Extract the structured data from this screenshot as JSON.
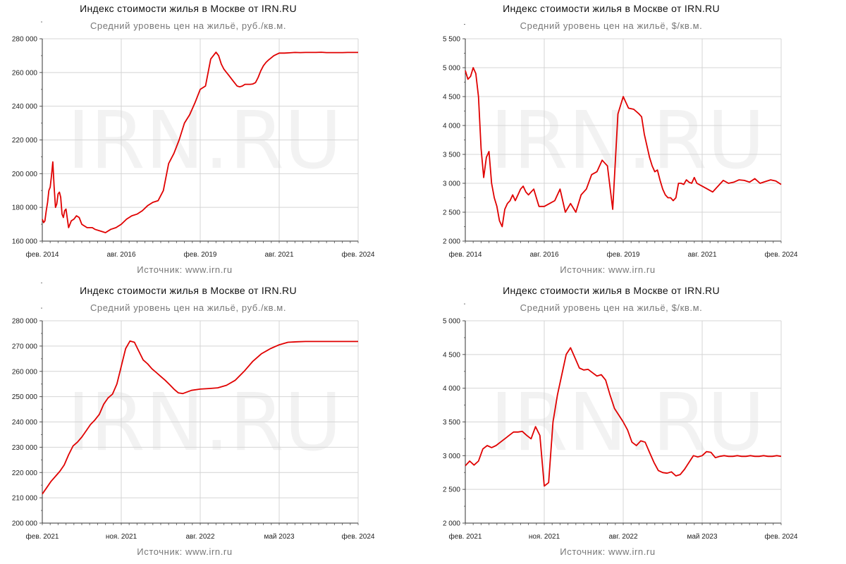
{
  "chart_data": [
    {
      "type": "line",
      "title": "Индекс стоимости жилья в Москве от IRN.RU",
      "subtitle": "Средний уровень цен на жильё, руб./кв.м.",
      "source": "Источник: www.irn.ru",
      "watermark": "IRN.RU",
      "ylim": [
        160000,
        280000
      ],
      "yticks": [
        "160 000",
        "180 000",
        "200 000",
        "220 000",
        "240 000",
        "260 000",
        "280 000"
      ],
      "xticks": [
        "фев. 2014",
        "авг. 2016",
        "фев. 2019",
        "авг. 2021",
        "фев. 2024"
      ],
      "line_color": "#e00000",
      "series": [
        {
          "name": "руб./кв.м.",
          "x": [
            0,
            0.5,
            1,
            1.5,
            2,
            2.5,
            3,
            3.5,
            4,
            4.5,
            5,
            5.5,
            6,
            6.5,
            7,
            7.5,
            8,
            8.5,
            9,
            10,
            11,
            12,
            13,
            14,
            15,
            16,
            17,
            18,
            19,
            20,
            22,
            24,
            26,
            28,
            30,
            32,
            34,
            36,
            38,
            40,
            42,
            44,
            46,
            48,
            50,
            52,
            54,
            56,
            58,
            60,
            62,
            64,
            66,
            67,
            68,
            69,
            70,
            71,
            72,
            73,
            74,
            75,
            76,
            77,
            78,
            79,
            80,
            81,
            82,
            83,
            84,
            85,
            86,
            88,
            90,
            92,
            94,
            96,
            98,
            100,
            102,
            104,
            106,
            108,
            110,
            112,
            114,
            116,
            118,
            120
          ],
          "values": [
            173000,
            171000,
            172000,
            178000,
            183000,
            190000,
            192000,
            199000,
            207000,
            192000,
            180000,
            182000,
            188000,
            189000,
            186000,
            176000,
            174000,
            178000,
            179000,
            168000,
            172000,
            173000,
            175000,
            174000,
            170000,
            169000,
            168000,
            168000,
            168000,
            167000,
            166000,
            165000,
            167000,
            168000,
            170000,
            173000,
            175000,
            176000,
            178000,
            181000,
            183000,
            184000,
            190000,
            206000,
            212000,
            220000,
            230000,
            235000,
            242000,
            250000,
            252000,
            268000,
            272000,
            270000,
            265000,
            262000,
            260000,
            258000,
            256000,
            254000,
            252000,
            251500,
            252000,
            253000,
            253000,
            253000,
            253200,
            254000,
            257000,
            261000,
            264000,
            266000,
            267500,
            270000,
            271500,
            271500,
            271700,
            271900,
            271800,
            271900,
            271900,
            271900,
            272000,
            271800,
            271800,
            271800,
            271800,
            271900,
            271900,
            271900
          ]
        }
      ]
    },
    {
      "type": "line",
      "title": "Индекс стоимости жилья в Москве от IRN.RU",
      "subtitle": "Средний уровень цен на жильё, $/кв.м.",
      "source": "Источник: www.irn.ru",
      "watermark": "IRN.RU",
      "ylim": [
        2000,
        5500
      ],
      "yticks": [
        "2 000",
        "2 500",
        "3 000",
        "3 500",
        "4 000",
        "4 500",
        "5 000",
        "5 500"
      ],
      "xticks": [
        "фев. 2014",
        "авг. 2016",
        "фев. 2019",
        "авг. 2021",
        "фев. 2024"
      ],
      "line_color": "#e00000",
      "series": [
        {
          "name": "$/кв.м.",
          "x": [
            0,
            1,
            2,
            3,
            4,
            5,
            6,
            7,
            8,
            9,
            10,
            11,
            12,
            13,
            14,
            15,
            16,
            17,
            18,
            19,
            20,
            21,
            22,
            23,
            24,
            26,
            28,
            30,
            32,
            34,
            36,
            38,
            40,
            42,
            44,
            46,
            48,
            50,
            52,
            54,
            56,
            58,
            60,
            62,
            64,
            66,
            67,
            68,
            69,
            70,
            71,
            72,
            73,
            74,
            75,
            76,
            77,
            78,
            79,
            80,
            81,
            82,
            83,
            84,
            85,
            86,
            87,
            88,
            90,
            92,
            94,
            96,
            98,
            100,
            102,
            104,
            106,
            108,
            110,
            112,
            114,
            116,
            118,
            120
          ],
          "values": [
            4950,
            4800,
            4850,
            5000,
            4900,
            4500,
            3600,
            3100,
            3450,
            3550,
            3000,
            2750,
            2600,
            2350,
            2250,
            2550,
            2650,
            2700,
            2800,
            2700,
            2800,
            2900,
            2950,
            2850,
            2800,
            2900,
            2600,
            2600,
            2650,
            2700,
            2900,
            2500,
            2650,
            2500,
            2800,
            2900,
            3150,
            3200,
            3400,
            3300,
            2550,
            4200,
            4500,
            4300,
            4280,
            4200,
            4150,
            3850,
            3650,
            3450,
            3300,
            3200,
            3230,
            3050,
            2900,
            2800,
            2750,
            2750,
            2700,
            2750,
            3000,
            3000,
            2980,
            3060,
            3020,
            3000,
            3100,
            3000,
            2950,
            2900,
            2850,
            2950,
            3050,
            3000,
            3020,
            3060,
            3050,
            3020,
            3080,
            3000,
            3030,
            3060,
            3040,
            2980
          ]
        }
      ]
    },
    {
      "type": "line",
      "title": "Индекс стоимости жилья в Москве от IRN.RU",
      "subtitle": "Средний уровень цен на жильё, руб./кв.м.",
      "source": "Источник: www.irn.ru",
      "watermark": "IRN.RU",
      "ylim": [
        200000,
        280000
      ],
      "yticks": [
        "200 000",
        "210 000",
        "220 000",
        "230 000",
        "240 000",
        "250 000",
        "260 000",
        "270 000",
        "280 000"
      ],
      "xticks": [
        "фев. 2021",
        "ноя. 2021",
        "авг. 2022",
        "май 2023",
        "фев. 2024"
      ],
      "line_color": "#e00000",
      "series": [
        {
          "name": "руб./кв.м.",
          "x": [
            0,
            0.5,
            1,
            1.5,
            2,
            2.5,
            3,
            3.5,
            4,
            4.5,
            5,
            5.5,
            6,
            6.5,
            7,
            7.5,
            8,
            8.5,
            9,
            9.5,
            10,
            10.5,
            11,
            11.5,
            12,
            12.5,
            13,
            13.5,
            14,
            14.5,
            15,
            15.5,
            16,
            17,
            18,
            19,
            20,
            21,
            22,
            23,
            24,
            25,
            26,
            27,
            28,
            29,
            30,
            31,
            32,
            33,
            34,
            35,
            36
          ],
          "values": [
            211500,
            214000,
            216500,
            218500,
            220500,
            223000,
            227000,
            230500,
            232000,
            234000,
            236500,
            239000,
            240800,
            243000,
            247000,
            249500,
            251000,
            255000,
            262000,
            269000,
            272000,
            271500,
            268000,
            264500,
            263000,
            261000,
            259500,
            258000,
            256500,
            254800,
            253000,
            251500,
            251200,
            252500,
            253000,
            253200,
            253500,
            254500,
            256500,
            260000,
            264000,
            267000,
            269000,
            270500,
            271500,
            271700,
            271800,
            271800,
            271800,
            271800,
            271800,
            271800,
            271800
          ]
        }
      ]
    },
    {
      "type": "line",
      "title": "Индекс стоимости жилья в Москве от IRN.RU",
      "subtitle": "Средний уровень цен на жильё, $/кв.м.",
      "source": "Источник: www.irn.ru",
      "watermark": "IRN.RU",
      "ylim": [
        2000,
        5000
      ],
      "yticks": [
        "2 000",
        "2 500",
        "3 000",
        "3 500",
        "4 000",
        "4 500",
        "5 000"
      ],
      "xticks": [
        "фев. 2021",
        "ноя. 2021",
        "авг. 2022",
        "май 2023",
        "фев. 2024"
      ],
      "line_color": "#e00000",
      "series": [
        {
          "name": "$/кв.м.",
          "x": [
            0,
            0.5,
            1,
            1.5,
            2,
            2.5,
            3,
            3.5,
            4,
            4.5,
            5,
            5.5,
            6,
            6.5,
            7,
            7.5,
            8,
            8.5,
            9,
            9.5,
            10,
            10.5,
            11,
            11.5,
            12,
            12.5,
            13,
            13.5,
            14,
            14.5,
            15,
            15.5,
            16,
            16.5,
            17,
            17.5,
            18,
            18.5,
            19,
            19.5,
            20,
            20.5,
            21,
            21.5,
            22,
            22.5,
            23,
            23.5,
            24,
            24.5,
            25,
            25.5,
            26,
            26.5,
            27,
            27.5,
            28,
            28.5,
            29,
            29.5,
            30,
            30.5,
            31,
            31.5,
            32,
            32.5,
            33,
            33.5,
            34,
            34.5,
            35,
            35.5,
            36
          ],
          "values": [
            2850,
            2920,
            2860,
            2920,
            3100,
            3150,
            3120,
            3150,
            3200,
            3250,
            3300,
            3350,
            3350,
            3360,
            3300,
            3250,
            3430,
            3300,
            2550,
            2600,
            3500,
            3900,
            4200,
            4500,
            4600,
            4450,
            4300,
            4270,
            4280,
            4230,
            4180,
            4200,
            4120,
            3900,
            3700,
            3600,
            3500,
            3380,
            3200,
            3150,
            3220,
            3200,
            3050,
            2900,
            2780,
            2750,
            2740,
            2760,
            2700,
            2720,
            2800,
            2900,
            3000,
            2980,
            3000,
            3060,
            3050,
            2970,
            2990,
            3000,
            2990,
            2990,
            3000,
            2990,
            2990,
            3000,
            2990,
            2990,
            3000,
            2990,
            2990,
            3000,
            2990
          ]
        }
      ]
    }
  ]
}
